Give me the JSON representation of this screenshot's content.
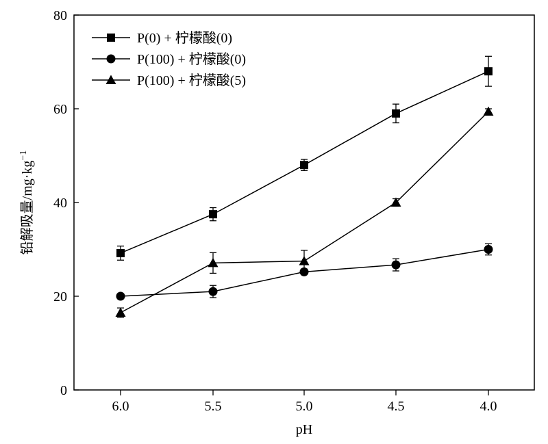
{
  "chart_data": {
    "type": "line",
    "xlabel": "pH",
    "ylabel": "铅解吸量/mg·kg",
    "ylabel_sup": "−1",
    "ylim": [
      0,
      80
    ],
    "yticks": [
      "0",
      "20",
      "40",
      "60",
      "80"
    ],
    "categories": [
      "6.0",
      "5.5",
      "5.0",
      "4.5",
      "4.0"
    ],
    "legend_position": "top-left",
    "series": [
      {
        "name": "P(0) + 柠檬酸(0)",
        "marker": "square",
        "values": [
          29.2,
          37.5,
          48.0,
          59.0,
          68.0
        ],
        "errors": [
          1.5,
          1.4,
          1.2,
          2.0,
          3.2
        ]
      },
      {
        "name": "P(100) + 柠檬酸(0)",
        "marker": "circle",
        "values": [
          20.0,
          21.0,
          25.2,
          26.7,
          30.0
        ],
        "errors": [
          0.4,
          1.3,
          0.6,
          1.3,
          1.2
        ]
      },
      {
        "name": "P(100) + 柠檬酸(5)",
        "marker": "triangle",
        "values": [
          16.5,
          27.1,
          27.5,
          40.0,
          59.4
        ],
        "errors": [
          1.0,
          2.2,
          2.3,
          0.8,
          0.6
        ]
      }
    ]
  }
}
